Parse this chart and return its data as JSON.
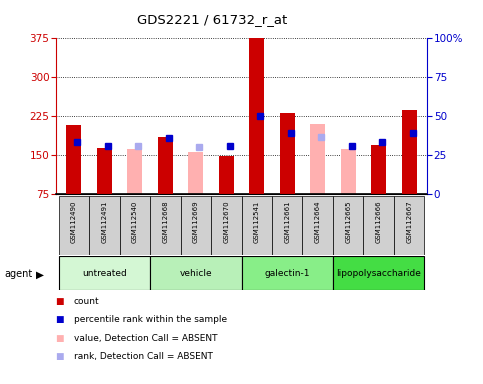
{
  "title": "GDS2221 / 61732_r_at",
  "samples": [
    "GSM112490",
    "GSM112491",
    "GSM112540",
    "GSM112668",
    "GSM112669",
    "GSM112670",
    "GSM112541",
    "GSM112661",
    "GSM112664",
    "GSM112665",
    "GSM112666",
    "GSM112667"
  ],
  "groups": [
    {
      "label": "untreated",
      "indices": [
        0,
        1,
        2
      ],
      "color": "#d4f7d4"
    },
    {
      "label": "vehicle",
      "indices": [
        3,
        4,
        5
      ],
      "color": "#b8f0b8"
    },
    {
      "label": "galectin-1",
      "indices": [
        6,
        7,
        8
      ],
      "color": "#88ee88"
    },
    {
      "label": "lipopolysaccharide",
      "indices": [
        9,
        10,
        11
      ],
      "color": "#44dd44"
    }
  ],
  "count_values": [
    207,
    163,
    null,
    185,
    null,
    148,
    375,
    232,
    null,
    null,
    170,
    237
  ],
  "absent_value_values": [
    null,
    null,
    162,
    null,
    155,
    null,
    null,
    null,
    210,
    162,
    null,
    null
  ],
  "percentile_rank": [
    175,
    168,
    null,
    183,
    null,
    168,
    225,
    193,
    null,
    168,
    175,
    193
  ],
  "absent_rank_values": [
    null,
    null,
    168,
    null,
    165,
    null,
    null,
    null,
    185,
    null,
    null,
    null
  ],
  "ylim_left": [
    75,
    375
  ],
  "ylim_right": [
    0,
    100
  ],
  "yticks_left": [
    75,
    150,
    225,
    300,
    375
  ],
  "yticks_right": [
    0,
    25,
    50,
    75,
    100
  ],
  "bar_color_red": "#cc0000",
  "bar_color_pink": "#ffb0b0",
  "dot_color_blue": "#0000cc",
  "dot_color_lightblue": "#aaaaee",
  "left_axis_color": "#cc0000",
  "right_axis_color": "#0000cc",
  "bar_width": 0.5,
  "legend_items": [
    {
      "color": "#cc0000",
      "label": "count"
    },
    {
      "color": "#0000cc",
      "label": "percentile rank within the sample"
    },
    {
      "color": "#ffb0b0",
      "label": "value, Detection Call = ABSENT"
    },
    {
      "color": "#aaaaee",
      "label": "rank, Detection Call = ABSENT"
    }
  ]
}
